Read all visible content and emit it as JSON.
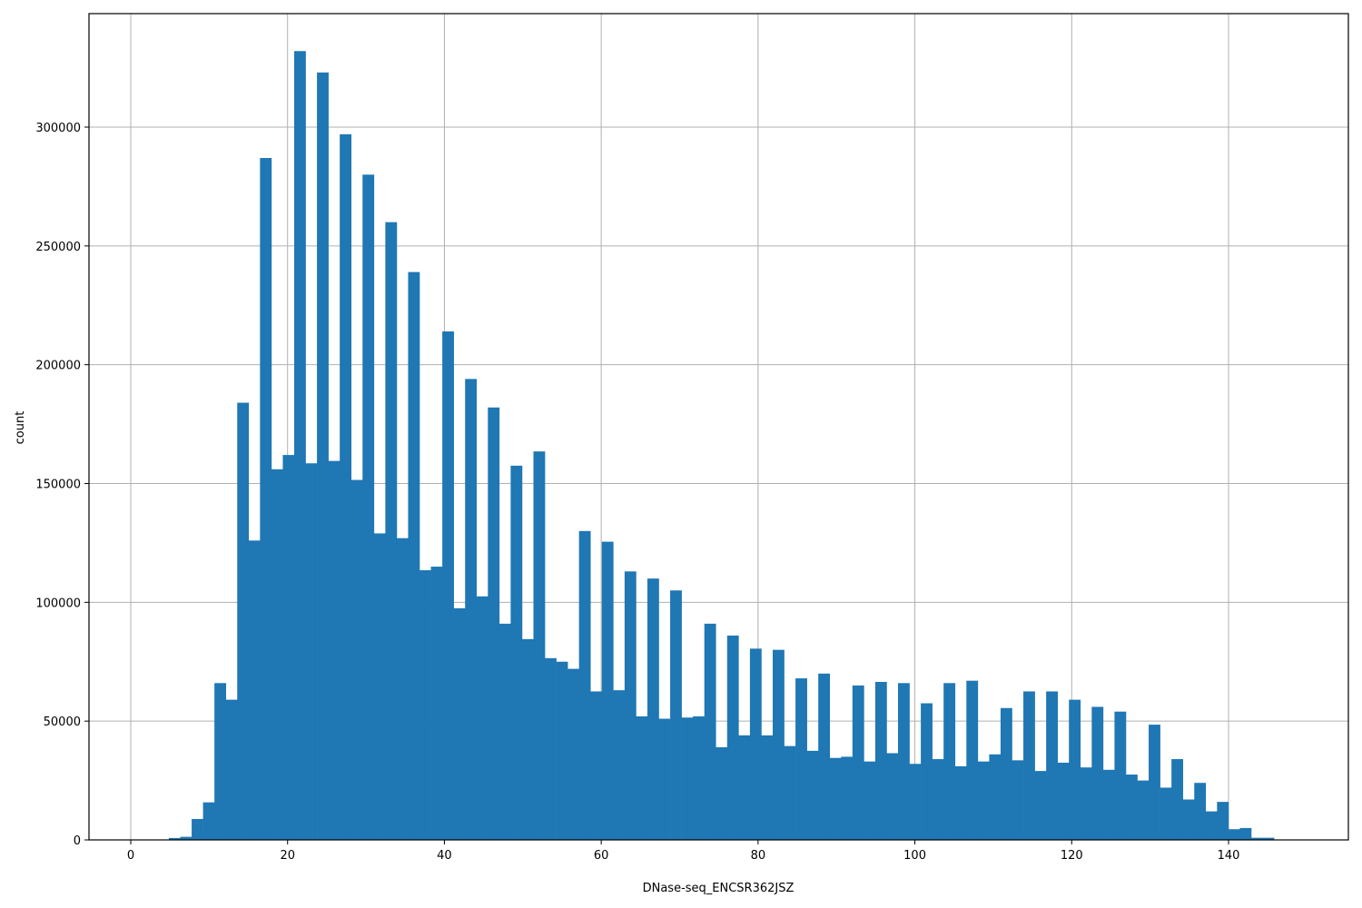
{
  "chart_data": {
    "type": "bar",
    "subtype": "histogram",
    "title": "",
    "xlabel": "DNase-seq_ENCSR362JSZ",
    "ylabel": "count",
    "xlim": [
      -5.4,
      155.8
    ],
    "ylim": [
      0,
      347000
    ],
    "grid": true,
    "legend": null,
    "bar_color": "#1f77b4",
    "bin_start": 4.86,
    "bin_width": 1.453,
    "x_ticks": [
      0,
      20,
      40,
      60,
      80,
      100,
      120,
      140
    ],
    "x_tick_labels": [
      "0",
      "20",
      "40",
      "60",
      "80",
      "100",
      "120",
      "140"
    ],
    "y_ticks": [
      0,
      50000,
      100000,
      150000,
      200000,
      250000,
      300000
    ],
    "y_tick_labels": [
      "0",
      "50000",
      "100000",
      "150000",
      "200000",
      "250000",
      "300000"
    ],
    "values": [
      800,
      1300,
      8800,
      15800,
      66000,
      59000,
      184000,
      126000,
      287000,
      156000,
      162000,
      332000,
      158500,
      323000,
      159500,
      297000,
      151500,
      280000,
      129000,
      260000,
      127000,
      239000,
      113500,
      115000,
      214000,
      97500,
      194000,
      102500,
      182000,
      91000,
      157500,
      84500,
      163500,
      76500,
      75000,
      72000,
      130000,
      62500,
      125500,
      63000,
      113000,
      52000,
      110000,
      51000,
      105000,
      51500,
      52000,
      91000,
      39000,
      86000,
      44000,
      80500,
      44000,
      80000,
      39500,
      68000,
      37500,
      70000,
      34500,
      35000,
      65000,
      33000,
      66500,
      36500,
      66000,
      32000,
      57500,
      34000,
      66000,
      31000,
      67000,
      33000,
      36000,
      55500,
      33500,
      62500,
      29000,
      62500,
      32500,
      59000,
      30500,
      56000,
      29500,
      54000,
      27500,
      25000,
      48500,
      22000,
      34000,
      17000,
      24000,
      12000,
      16000,
      4500,
      5000,
      900,
      900
    ]
  }
}
